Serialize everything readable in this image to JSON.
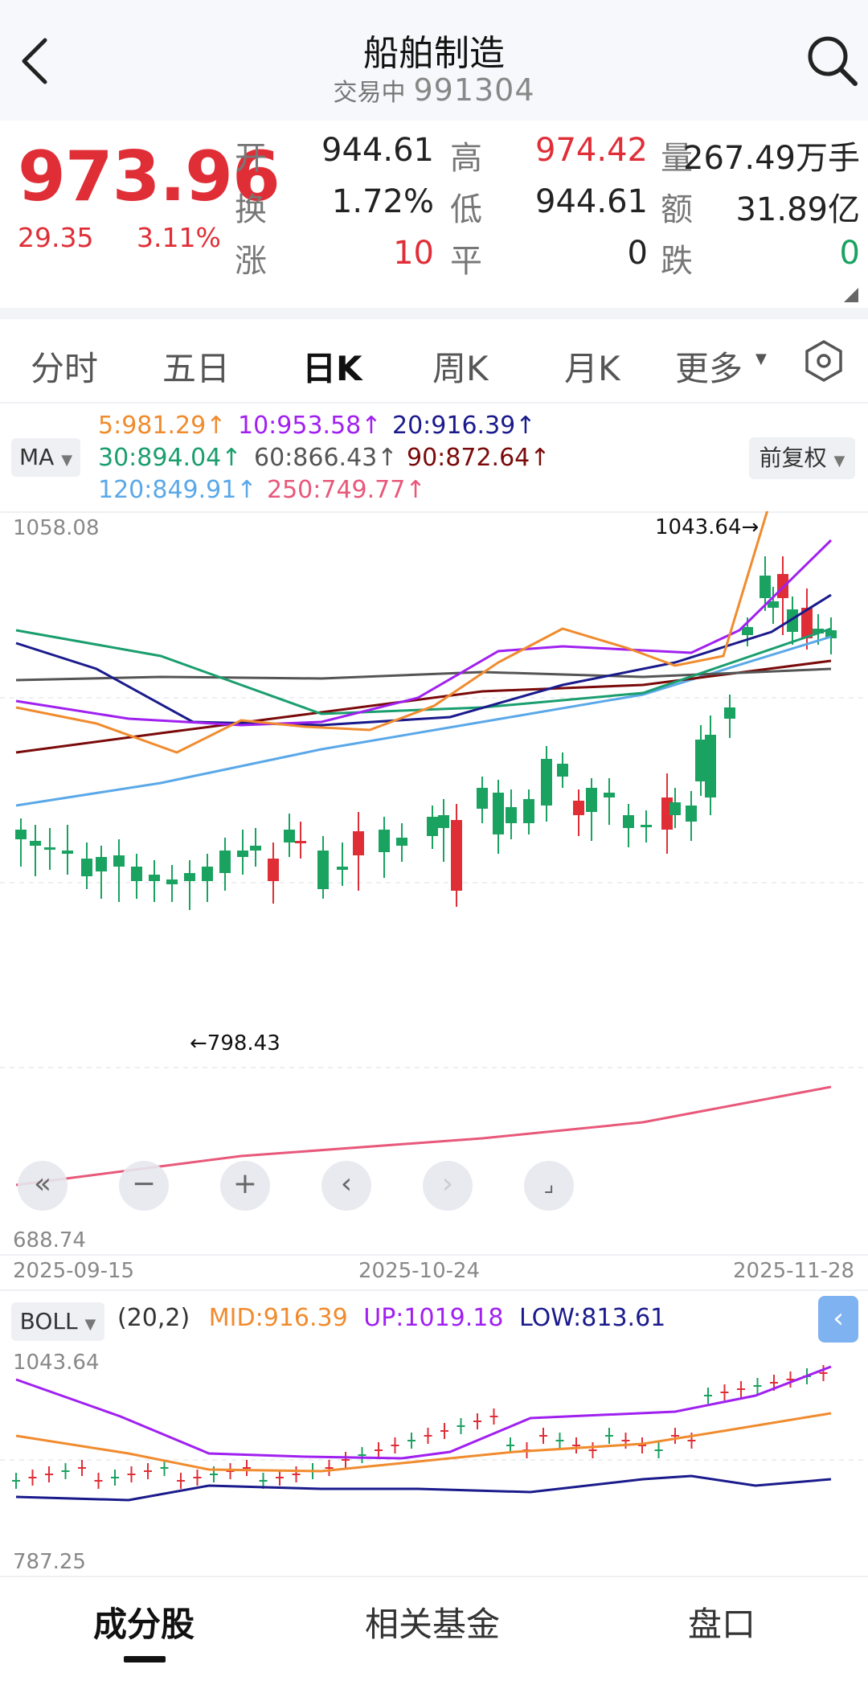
{
  "header": {
    "title": "船舶制造",
    "status": "交易中",
    "code": "991304"
  },
  "quote": {
    "price": "973.96",
    "change": "29.35",
    "change_pct": "3.11%",
    "fields": [
      {
        "label": "开",
        "value": "944.61",
        "color": "#222222"
      },
      {
        "label": "高",
        "value": "974.42",
        "color": "#e02e37"
      },
      {
        "label": "量",
        "value": "267.49万手",
        "color": "#222222"
      },
      {
        "label": "换",
        "value": "1.72%",
        "color": "#222222"
      },
      {
        "label": "低",
        "value": "944.61",
        "color": "#222222"
      },
      {
        "label": "额",
        "value": "31.89亿",
        "color": "#222222"
      },
      {
        "label": "涨",
        "value": "10",
        "color": "#e02e37"
      },
      {
        "label": "平",
        "value": "0",
        "color": "#222222"
      },
      {
        "label": "跌",
        "value": "0",
        "color": "#1aa260"
      }
    ]
  },
  "tabs": [
    "分时",
    "五日",
    "日K",
    "周K",
    "月K",
    "更多"
  ],
  "active_tab": "日K",
  "ma": {
    "button": "MA",
    "adjust_button": "前复权",
    "legend": [
      {
        "text": "5:981.29↑",
        "color": "#f08b2e"
      },
      {
        "text": "10:953.58↑",
        "color": "#a020f0"
      },
      {
        "text": "20:916.39↑",
        "color": "#1a1a8c"
      },
      {
        "text": "30:894.04↑",
        "color": "#1a9e6e"
      },
      {
        "text": "60:866.43↑",
        "color": "#555555"
      },
      {
        "text": "90:872.64↑",
        "color": "#7a0a0a"
      },
      {
        "text": "120:849.91↑",
        "color": "#5aa8e8"
      },
      {
        "text": "250:749.77↑",
        "color": "#e8587a"
      }
    ]
  },
  "main_chart": {
    "y_top": "1058.08",
    "y_bottom": "688.74",
    "high_marker": "1043.64→",
    "low_marker": "←798.43",
    "dates": [
      "2025-09-15",
      "2025-10-24",
      "2025-11-28"
    ]
  },
  "boll": {
    "button": "BOLL",
    "params": "(20,2)",
    "mid": "MID:916.39",
    "up": "UP:1019.18",
    "low": "LOW:813.61",
    "mid_color": "#f08b2e",
    "up_color": "#a020f0",
    "low_color": "#1a1a8c",
    "y_top": "1043.64",
    "y_bottom": "787.25"
  },
  "bottom_tabs": [
    "成分股",
    "相关基金",
    "盘口"
  ],
  "colors": {
    "up": "#e02e37",
    "down": "#1aa260"
  }
}
